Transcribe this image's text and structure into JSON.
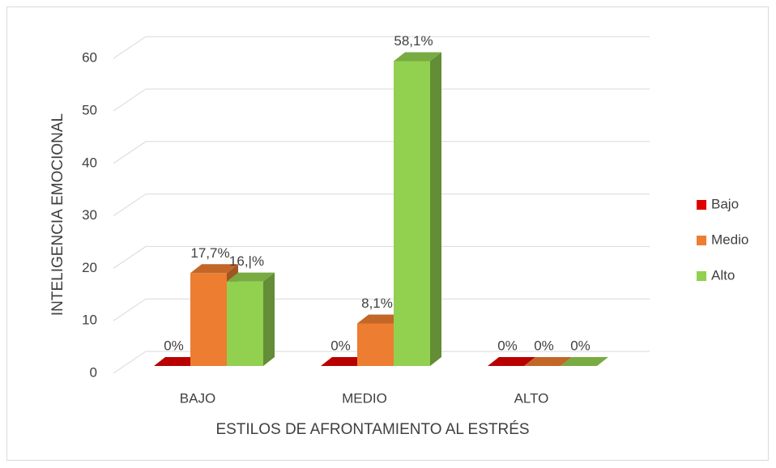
{
  "chart_data": {
    "type": "bar3d",
    "x_label": "ESTILOS DE AFRONTAMIENTO AL ESTRÉS",
    "y_label": "INTELIGENCIA EMOCIONAL",
    "categories": [
      "BAJO",
      "MEDIO",
      "ALTO"
    ],
    "series": [
      {
        "name": "Bajo",
        "color": "#e00000",
        "values": [
          0,
          0,
          0
        ],
        "value_labels": [
          "0%",
          "0%",
          "0%"
        ]
      },
      {
        "name": "Medio",
        "color": "#ed7d31",
        "values": [
          17.7,
          8.1,
          0
        ],
        "value_labels": [
          "17,7%",
          "8,1%",
          "0%"
        ]
      },
      {
        "name": "Alto",
        "color": "#92d050",
        "values": [
          16.1,
          58.1,
          0
        ],
        "value_labels": [
          "16,|%",
          "58,1%",
          "0%"
        ]
      }
    ],
    "ylim": [
      0,
      60
    ],
    "yticks": [
      0,
      10,
      20,
      30,
      40,
      50,
      60
    ],
    "grid": true,
    "legend": "right"
  }
}
